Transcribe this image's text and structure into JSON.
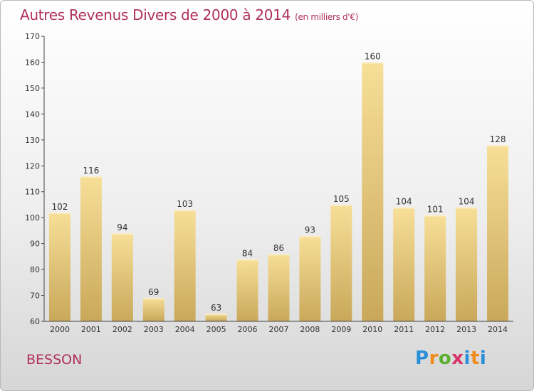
{
  "header": {
    "title": "Autres Revenus Divers de 2000 à 2014",
    "subtitle": "(en milliers d'€)"
  },
  "footer": {
    "location": "BESSON",
    "logo_text": "Proxiti"
  },
  "colors": {
    "title": "#b0305a",
    "bar_light": "#f5dc94",
    "bar_dark": "#c8a858",
    "axis": "#333333"
  },
  "chart_data": {
    "type": "bar",
    "title": "Autres Revenus Divers de 2000 à 2014",
    "subtitle": "(en milliers d'€)",
    "categories": [
      "2000",
      "2001",
      "2002",
      "2003",
      "2004",
      "2005",
      "2006",
      "2007",
      "2008",
      "2009",
      "2010",
      "2011",
      "2012",
      "2013",
      "2014"
    ],
    "values": [
      102,
      116,
      94,
      69,
      103,
      63,
      84,
      86,
      93,
      105,
      160,
      104,
      101,
      104,
      128
    ],
    "ylim": [
      60,
      170
    ],
    "yticks": [
      60,
      70,
      80,
      90,
      100,
      110,
      120,
      130,
      140,
      150,
      160,
      170
    ],
    "grid": false,
    "legend": "none"
  }
}
